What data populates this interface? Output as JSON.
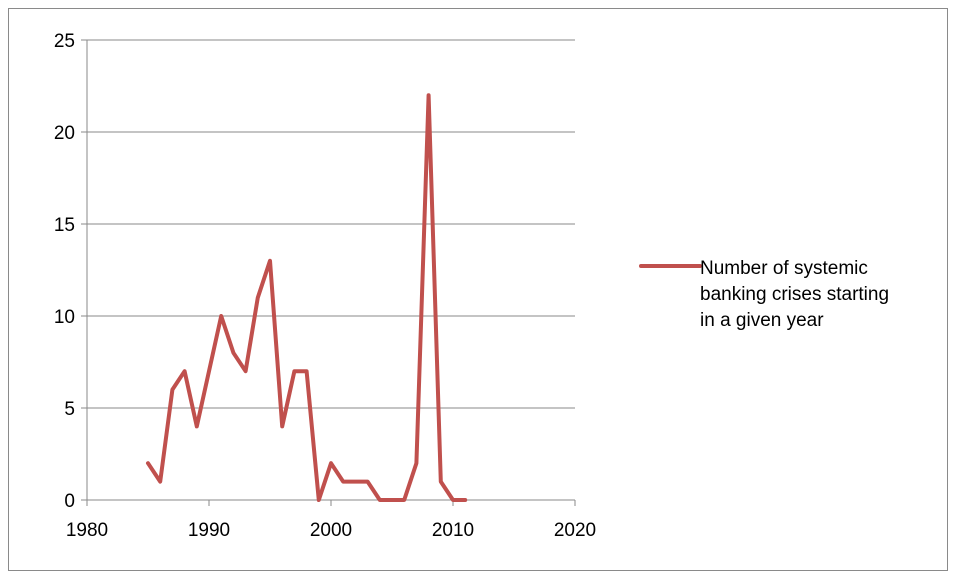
{
  "chart_data": {
    "type": "line",
    "title": "",
    "xlabel": "",
    "ylabel": "",
    "xlim": [
      1980,
      2020
    ],
    "ylim": [
      0,
      25
    ],
    "x_ticks": [
      1980,
      1990,
      2000,
      2010,
      2020
    ],
    "y_ticks": [
      0,
      5,
      10,
      15,
      20,
      25
    ],
    "grid": "horizontal",
    "legend_position": "right",
    "series": [
      {
        "name": "Number of systemic banking crises starting in  a given year",
        "legend_lines": [
          "Number of systemic",
          "banking crises starting",
          "in  a given year"
        ],
        "color": "#C0504D",
        "x": [
          1985,
          1986,
          1987,
          1988,
          1989,
          1990,
          1991,
          1992,
          1993,
          1994,
          1995,
          1996,
          1997,
          1998,
          1999,
          2000,
          2001,
          2002,
          2003,
          2004,
          2005,
          2006,
          2007,
          2008,
          2009,
          2010,
          2011
        ],
        "y": [
          2,
          1,
          6,
          7,
          4,
          7,
          10,
          8,
          7,
          11,
          13,
          4,
          7,
          7,
          0,
          2,
          1,
          1,
          1,
          0,
          0,
          0,
          2,
          22,
          1,
          0,
          0
        ]
      }
    ]
  }
}
